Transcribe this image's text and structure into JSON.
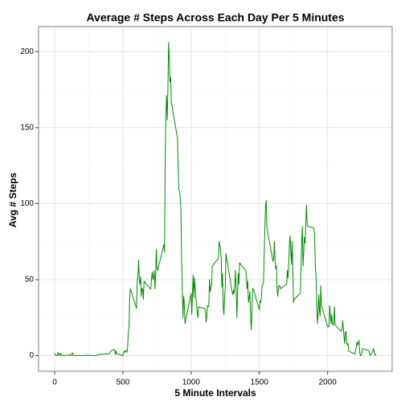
{
  "chart_data": {
    "type": "line",
    "title": "Average # Steps Across Each Day Per 5 Minutes",
    "x_label": "5 Minute Intervals",
    "y_label": "Avg # Steps",
    "color": "#008B00",
    "grid": true,
    "minor_grid": true,
    "xlim": [
      -117.75,
      2472.75
    ],
    "ylim": [
      -10.3,
      216.5
    ],
    "xticks": [
      0,
      500,
      1000,
      1500,
      2000
    ],
    "yticks": [
      0,
      50,
      100,
      150,
      200
    ],
    "x": [
      0,
      5,
      10,
      15,
      20,
      25,
      30,
      35,
      40,
      45,
      50,
      55,
      100,
      105,
      110,
      115,
      120,
      125,
      130,
      135,
      140,
      145,
      150,
      155,
      200,
      225,
      300,
      330,
      400,
      410,
      430,
      440,
      445,
      450,
      455,
      500,
      505,
      510,
      515,
      520,
      525,
      530,
      535,
      540,
      545,
      550,
      555,
      600,
      605,
      610,
      615,
      620,
      625,
      630,
      635,
      640,
      645,
      650,
      655,
      700,
      705,
      710,
      715,
      720,
      725,
      730,
      735,
      740,
      745,
      750,
      755,
      800,
      805,
      810,
      815,
      820,
      825,
      830,
      835,
      840,
      845,
      850,
      855,
      900,
      905,
      910,
      915,
      920,
      925,
      930,
      935,
      940,
      945,
      950,
      955,
      1000,
      1005,
      1010,
      1015,
      1020,
      1025,
      1030,
      1035,
      1040,
      1045,
      1050,
      1055,
      1100,
      1105,
      1110,
      1115,
      1120,
      1125,
      1130,
      1135,
      1140,
      1145,
      1150,
      1155,
      1200,
      1205,
      1210,
      1215,
      1220,
      1225,
      1230,
      1235,
      1240,
      1245,
      1250,
      1255,
      1300,
      1305,
      1310,
      1315,
      1320,
      1325,
      1330,
      1335,
      1340,
      1345,
      1350,
      1355,
      1400,
      1405,
      1410,
      1415,
      1420,
      1425,
      1430,
      1435,
      1440,
      1445,
      1450,
      1455,
      1500,
      1505,
      1510,
      1515,
      1520,
      1525,
      1530,
      1535,
      1540,
      1545,
      1550,
      1555,
      1600,
      1605,
      1610,
      1615,
      1620,
      1625,
      1630,
      1635,
      1640,
      1645,
      1650,
      1655,
      1700,
      1705,
      1710,
      1715,
      1720,
      1725,
      1730,
      1735,
      1740,
      1745,
      1750,
      1755,
      1800,
      1805,
      1810,
      1815,
      1820,
      1825,
      1830,
      1835,
      1840,
      1845,
      1850,
      1855,
      1900,
      1905,
      1910,
      1915,
      1920,
      1925,
      1930,
      1935,
      1940,
      1945,
      1950,
      1955,
      2000,
      2005,
      2010,
      2015,
      2020,
      2025,
      2030,
      2035,
      2040,
      2045,
      2050,
      2055,
      2100,
      2105,
      2110,
      2115,
      2120,
      2125,
      2130,
      2135,
      2140,
      2145,
      2150,
      2155,
      2200,
      2205,
      2210,
      2215,
      2220,
      2225,
      2230,
      2235,
      2240,
      2245,
      2250,
      2255,
      2300,
      2305,
      2310,
      2315,
      2320,
      2325,
      2330,
      2335,
      2340,
      2345,
      2350,
      2355
    ],
    "values": [
      1.7,
      0.3,
      0.1,
      0.2,
      0.1,
      2.1,
      0.5,
      0.9,
      0,
      1.5,
      0.3,
      0.1,
      0.3,
      0.7,
      0.2,
      0.3,
      0,
      1.1,
      1.8,
      0.2,
      0.2,
      0.4,
      0.3,
      0,
      0,
      0.2,
      0,
      0.8,
      1.2,
      2.6,
      4.1,
      3.5,
      0.8,
      3.1,
      1.1,
      0,
      1.6,
      3,
      2.2,
      3.3,
      3,
      2.1,
      6.1,
      16,
      18,
      39,
      44,
      31,
      49,
      53,
      63,
      50,
      47,
      52,
      39,
      44,
      44,
      37,
      49,
      44,
      44,
      51,
      55,
      50,
      51,
      56,
      44,
      52,
      70,
      58,
      56,
      73,
      68,
      129,
      158,
      171,
      155,
      177,
      206,
      196,
      180,
      183,
      167,
      143,
      124,
      109,
      108,
      104,
      96,
      66,
      45,
      25,
      39,
      35,
      21,
      41,
      27,
      42,
      53,
      38,
      51,
      44,
      37,
      35,
      28,
      25,
      32,
      31,
      29,
      22,
      26,
      33,
      32,
      34,
      50,
      42,
      45,
      46,
      59,
      64,
      75,
      73,
      70,
      64,
      45,
      54,
      33,
      27,
      38,
      45,
      67,
      42,
      40,
      43,
      41,
      46,
      56,
      43,
      25,
      40,
      54,
      47,
      61,
      56,
      52,
      44,
      49,
      35,
      38,
      42,
      28,
      17,
      26,
      44,
      44,
      30,
      36,
      35,
      39,
      46,
      47,
      48,
      65,
      83,
      99,
      102,
      84,
      62,
      64,
      75,
      63,
      57,
      59,
      44,
      39,
      45,
      46,
      46,
      44,
      47,
      56,
      51,
      61,
      73,
      79,
      69,
      60,
      75,
      57,
      35,
      37,
      41,
      58,
      75,
      85,
      59,
      68,
      78,
      74,
      85,
      99,
      86,
      85,
      84,
      78,
      58,
      53,
      36,
      21,
      27,
      40,
      30,
      26,
      46,
      33,
      19,
      19,
      19,
      33,
      27,
      21,
      27,
      21,
      20,
      21,
      32,
      20,
      16,
      17,
      23,
      19,
      12,
      8,
      15,
      16,
      8,
      7,
      8,
      3,
      1,
      4,
      5,
      9,
      7,
      8,
      10,
      2,
      0,
      0,
      1.6,
      4.6,
      3.3,
      2.8,
      0,
      0.8,
      1,
      1.6,
      2.6,
      4.7,
      3.3,
      0.6,
      0.2,
      1.1
    ]
  }
}
